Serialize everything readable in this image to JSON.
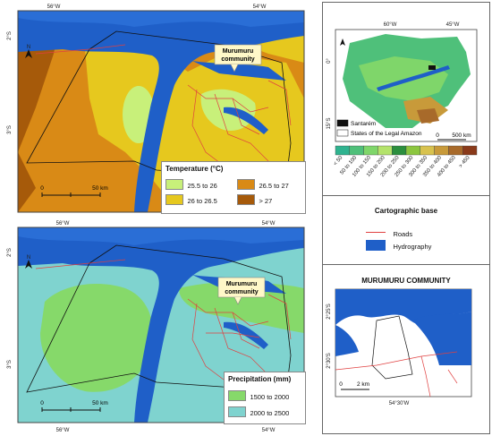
{
  "temperature_map": {
    "lon_top": [
      "56°W",
      "54°W"
    ],
    "lat_left": [
      "2°S",
      "3°S"
    ],
    "callout": [
      "Murumuru",
      "community"
    ],
    "scale": {
      "zero": "0",
      "dist": "50 km"
    },
    "legend": {
      "title": "Temperature (°C)",
      "items": [
        {
          "label": "25.5 to 26",
          "color": "#c8f07a"
        },
        {
          "label": "26.5 to 27",
          "color": "#d98a16"
        },
        {
          "label": "26 to 26.5",
          "color": "#e6c81e"
        },
        {
          "label": "> 27",
          "color": "#a65a0a"
        }
      ]
    }
  },
  "precipitation_map": {
    "lon_top": [
      "56°W",
      "54°W"
    ],
    "lon_bottom": [
      "56°W",
      "54°W"
    ],
    "lat_left": [
      "2°S",
      "3°S"
    ],
    "callout": [
      "Murumuru",
      "community"
    ],
    "scale": {
      "zero": "0",
      "dist": "50 km"
    },
    "legend": {
      "title": "Precipitation (mm)",
      "items": [
        {
          "label": "1500 to 2000",
          "color": "#86d96a"
        },
        {
          "label": "2000 to 2500",
          "color": "#7fd3cf"
        }
      ]
    }
  },
  "overview_map": {
    "lon_top": [
      "60°W",
      "45°W"
    ],
    "lat_left": [
      "0°",
      "15°S"
    ],
    "scale": {
      "zero": "0",
      "dist": "500 km"
    },
    "legend_items": [
      {
        "label": "Santarém",
        "color": "#111111"
      },
      {
        "label": "States of the Legal Amazon",
        "color": "#ffffff"
      }
    ],
    "elevation_labels": [
      "< 50",
      "50 to 100",
      "100 to 150",
      "150 to 200",
      "200 to 250",
      "250 to 300",
      "300 to 350",
      "350 to 400",
      "400 to 450",
      "> 450"
    ],
    "elevation_colors": [
      "#2fb38f",
      "#4fc07a",
      "#7fd66a",
      "#b4e36b",
      "#2b8f3e",
      "#8cc63f",
      "#d8c24e",
      "#c89a3a",
      "#a86a2a",
      "#8a3a1a"
    ]
  },
  "cartographic_base": {
    "title": "Cartographic base",
    "items": [
      {
        "label": "Roads",
        "color": "#e04040"
      },
      {
        "label": "Hydrography",
        "color": "#1f5fc8"
      }
    ]
  },
  "community_map": {
    "title": "MURUMURU COMMUNITY",
    "lat_left": [
      "2°25'S",
      "2°30'S"
    ],
    "lon_bottom": "54°30'W",
    "scale": {
      "zero": "0",
      "dist": "2 km"
    }
  },
  "colors": {
    "water": "#1f5fc8",
    "road": "#e04040",
    "frame": "#444444"
  }
}
